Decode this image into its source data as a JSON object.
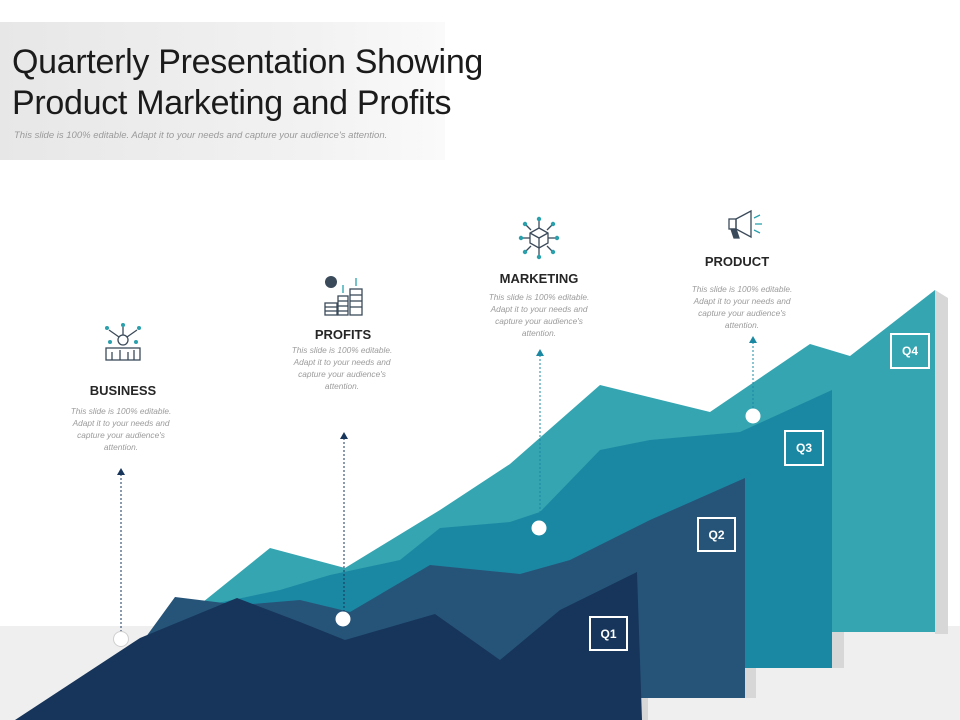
{
  "header": {
    "title": "Quarterly Presentation Showing Product Marketing and Profits",
    "subtitle": "This slide is 100% editable. Adapt it to your needs and capture your audience's attention."
  },
  "stages": [
    {
      "label": "BUSINESS",
      "desc": "This slide is 100% editable. Adapt it to your needs and capture your audience's attention.",
      "icon": "business-network-icon"
    },
    {
      "label": "PROFITS",
      "desc": "This slide is 100% editable. Adapt it to your needs and capture your audience's attention.",
      "icon": "coin-stacks-icon"
    },
    {
      "label": "MARKETING",
      "desc": "This slide is 100% editable. Adapt it to your needs and capture your audience's attention.",
      "icon": "cube-network-icon"
    },
    {
      "label": "PRODUCT",
      "desc": "This slide is 100% editable. Adapt it to your needs and capture your audience's attention.",
      "icon": "megaphone-icon"
    }
  ],
  "quarters": [
    "Q1",
    "Q2",
    "Q3",
    "Q4"
  ],
  "colors": {
    "q1": "#17355a",
    "q2": "#265479",
    "q3": "#1b88a3",
    "q4": "#35a5b1",
    "icon": "#3b4a5a",
    "icon_accent": "#2aa0ad"
  }
}
